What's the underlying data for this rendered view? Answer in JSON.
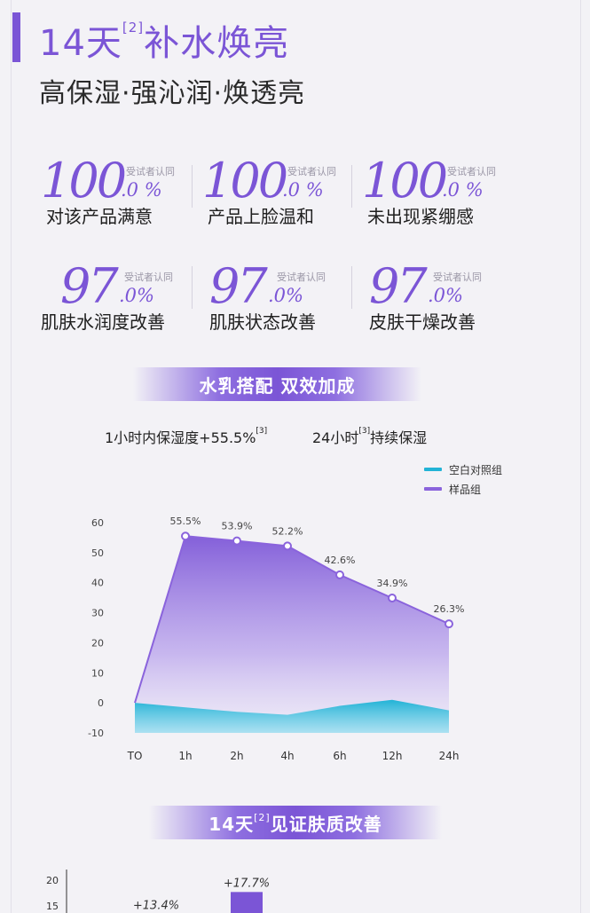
{
  "header": {
    "title_main": "14天",
    "title_sup": "[2]",
    "title_rest": "补水焕亮",
    "subtitle": "高保湿·强沁润·焕透亮"
  },
  "stats": [
    {
      "big": "100",
      "small": ".0 %",
      "note": "受试者认同",
      "label": "对该产品满意"
    },
    {
      "big": "100",
      "small": ".0 %",
      "note": "受试者认同",
      "label": "产品上脸温和"
    },
    {
      "big": "100",
      "small": ".0 %",
      "note": "受试者认同",
      "label": "未出现紧绷感"
    },
    {
      "big": "97",
      "small": ".0%",
      "note": "受试者认同",
      "label": "肌肤水润度改善"
    },
    {
      "big": "97",
      "small": ".0%",
      "note": "受试者认同",
      "label": "肌肤状态改善"
    },
    {
      "big": "97",
      "small": ".0%",
      "note": "受试者认同",
      "label": "皮肤干燥改善"
    }
  ],
  "banner1": {
    "text": "水乳搭配 双效加成"
  },
  "claims": {
    "left_text": "1小时内保湿度+55.5%",
    "left_sup": "[3]",
    "right_pre": "24小时",
    "right_sup": "[3]",
    "right_post": "持续保湿"
  },
  "colors": {
    "accent": "#7b55d6",
    "sample": "#8a63dc",
    "control": "#22b3d6"
  },
  "chart_data": [
    {
      "type": "area",
      "categories": [
        "TO",
        "1h",
        "2h",
        "4h",
        "6h",
        "12h",
        "24h"
      ],
      "ylim": [
        -10,
        60
      ],
      "yticks": [
        60,
        50,
        40,
        30,
        20,
        10,
        0,
        -10
      ],
      "grid": false,
      "legend_position": "top-right",
      "series": [
        {
          "name": "空白对照组",
          "color": "#22b3d6",
          "values": [
            0,
            -1.5,
            -3,
            -4,
            -1,
            1,
            -2.5
          ]
        },
        {
          "name": "样品组",
          "color": "#8a63dc",
          "values": [
            0,
            55.5,
            53.9,
            52.2,
            42.6,
            34.9,
            26.3
          ],
          "labels": [
            "",
            "55.5%",
            "53.9%",
            "52.2%",
            "42.6%",
            "34.9%",
            "26.3%"
          ]
        }
      ]
    },
    {
      "type": "bar",
      "yticks": [
        20,
        15
      ],
      "ylim": [
        0,
        20
      ],
      "grid": false,
      "values": [
        13.4,
        17.7
      ],
      "labels": [
        "+13.4%",
        "+17.7%"
      ]
    }
  ],
  "banner2": {
    "pre": "14天",
    "sup": "[2]",
    "post": "见证肤质改善"
  }
}
